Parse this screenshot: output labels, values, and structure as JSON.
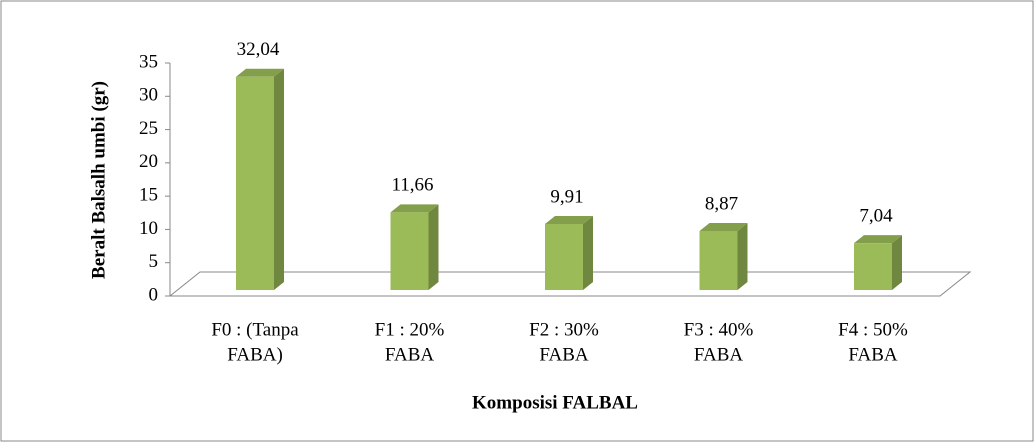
{
  "chart_data": {
    "type": "bar3d",
    "y_label": "Beralt Balsalh umbi (gr)",
    "x_label": "Komposisi FALBAL",
    "categories": [
      [
        "F0 : (Tanpa",
        "FABA)"
      ],
      [
        "F1 : 20%",
        "FABA"
      ],
      [
        "F2 : 30%",
        "FABA"
      ],
      [
        "F3 : 40%",
        "FABA"
      ],
      [
        "F4 : 50%",
        "FABA"
      ]
    ],
    "values": [
      32.04,
      11.66,
      9.91,
      8.87,
      7.04
    ],
    "value_labels": [
      "32,04",
      "11,66",
      "9,91",
      "8,87",
      "7,04"
    ],
    "color": "#9bbb59",
    "ylim": [
      0,
      35
    ],
    "yticks": [
      0,
      5,
      10,
      15,
      20,
      25,
      30,
      35
    ]
  }
}
